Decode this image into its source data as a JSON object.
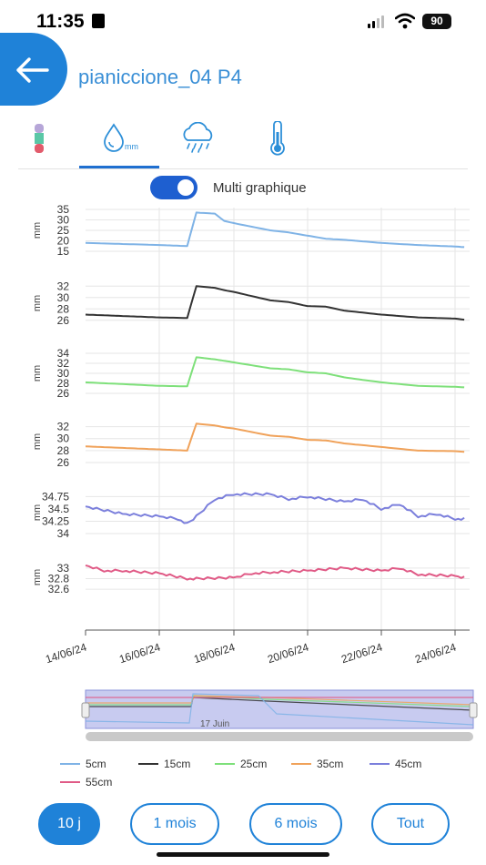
{
  "status": {
    "time": "11:35",
    "battery": "90"
  },
  "header": {
    "title": "pianiccione_04 P4"
  },
  "tabs": [
    {
      "icon": "battery-level-icon"
    },
    {
      "icon": "water-drop-mm-icon",
      "label": "mm"
    },
    {
      "icon": "rain-cloud-icon"
    },
    {
      "icon": "thermometer-icon"
    }
  ],
  "toggle": {
    "label": "Multi graphique",
    "on": true
  },
  "colors": {
    "accent": "#1f82d8",
    "s5": "#7fb3e6",
    "s15": "#333333",
    "s25": "#7ee07a",
    "s35": "#f0a25a",
    "s45": "#7b7fdc",
    "s55": "#e05a86"
  },
  "chart_data": {
    "type": "line",
    "xlabel": "",
    "ylabel": "mm",
    "x_tick_labels": [
      "14/06/24",
      "16/06/24",
      "18/06/24",
      "20/06/24",
      "22/06/24",
      "24/06/24"
    ],
    "xlim": [
      "14/06/24",
      "24/06/24"
    ],
    "panels": [
      {
        "name": "5cm",
        "ylabel": "mm",
        "yticks": [
          "35",
          "30",
          "25",
          "20",
          "15"
        ],
        "ylim": [
          15,
          35
        ],
        "x": [
          "14/06",
          "16/06",
          "16/06 18h",
          "17/06",
          "17/06 12h",
          "17/06 18h",
          "18/06",
          "19/06",
          "19/06 12h",
          "20/06",
          "20/06 12h",
          "21/06",
          "22/06",
          "23/06",
          "24/06",
          "24/06 06h"
        ],
        "values": [
          19.0,
          18.0,
          17.5,
          33.5,
          33.0,
          29.5,
          28.5,
          25.0,
          24.0,
          22.5,
          21.0,
          20.5,
          19.0,
          18.0,
          17.3,
          17.0
        ]
      },
      {
        "name": "15cm",
        "ylabel": "mm",
        "yticks": [
          "32",
          "30",
          "28",
          "26"
        ],
        "ylim": [
          25,
          33
        ],
        "x": [
          "14/06",
          "16/06",
          "16/06 18h",
          "17/06",
          "17/06 12h",
          "17/06 18h",
          "18/06",
          "19/06",
          "19/06 12h",
          "20/06",
          "20/06 12h",
          "21/06",
          "22/06",
          "23/06",
          "24/06",
          "24/06 06h"
        ],
        "values": [
          27.0,
          26.5,
          26.4,
          32.0,
          31.7,
          31.3,
          31.0,
          29.5,
          29.2,
          28.5,
          28.4,
          27.7,
          27.0,
          26.5,
          26.3,
          26.1
        ]
      },
      {
        "name": "25cm",
        "ylabel": "mm",
        "yticks": [
          "34",
          "32",
          "30",
          "28",
          "26"
        ],
        "ylim": [
          26,
          34
        ],
        "x": [
          "14/06",
          "16/06",
          "16/06 18h",
          "17/06",
          "17/06 12h",
          "17/06 18h",
          "18/06",
          "19/06",
          "19/06 12h",
          "20/06",
          "20/06 12h",
          "21/06",
          "22/06",
          "23/06",
          "24/06",
          "24/06 06h"
        ],
        "values": [
          28.2,
          27.5,
          27.4,
          33.2,
          32.8,
          32.5,
          32.2,
          31.0,
          30.8,
          30.2,
          30.0,
          29.2,
          28.2,
          27.5,
          27.3,
          27.2
        ]
      },
      {
        "name": "35cm",
        "ylabel": "mm",
        "yticks": [
          "32",
          "30",
          "28",
          "26"
        ],
        "ylim": [
          26,
          33
        ],
        "x": [
          "14/06",
          "16/06",
          "16/06 18h",
          "17/06",
          "17/06 12h",
          "17/06 18h",
          "18/06",
          "19/06",
          "19/06 12h",
          "20/06",
          "20/06 12h",
          "21/06",
          "22/06",
          "23/06",
          "24/06",
          "24/06 06h"
        ],
        "values": [
          28.7,
          28.2,
          28.0,
          32.5,
          32.2,
          31.9,
          31.7,
          30.5,
          30.3,
          29.8,
          29.7,
          29.2,
          28.6,
          28.0,
          27.9,
          27.8
        ]
      },
      {
        "name": "45cm",
        "ylabel": "mm",
        "yticks": [
          "34.75",
          "34.5",
          "34.25",
          "34"
        ],
        "ylim": [
          34,
          34.85
        ],
        "x": [
          "14/06",
          "15/06",
          "16/06",
          "16/06 12h",
          "16/06 18h",
          "17/06",
          "17/06 12h",
          "18/06",
          "19/06",
          "19/06 12h",
          "20/06",
          "21/06",
          "21/06 12h",
          "22/06",
          "22/06 12h",
          "23/06",
          "23/06 12h",
          "24/06",
          "24/06 06h"
        ],
        "values": [
          34.55,
          34.4,
          34.35,
          34.3,
          34.2,
          34.35,
          34.7,
          34.8,
          34.8,
          34.7,
          34.75,
          34.65,
          34.7,
          34.5,
          34.6,
          34.35,
          34.4,
          34.3,
          34.3
        ]
      },
      {
        "name": "55cm",
        "ylabel": "mm",
        "yticks": [
          "33",
          "32.8",
          "32.6"
        ],
        "ylim": [
          32.55,
          33.1
        ],
        "x": [
          "14/06",
          "14/06 12h",
          "15/06",
          "16/06",
          "16/06 18h",
          "17/06",
          "18/06",
          "18/06 12h",
          "19/06",
          "20/06",
          "21/06",
          "22/06",
          "22/06 12h",
          "23/06",
          "24/06",
          "24/06 06h"
        ],
        "values": [
          33.05,
          32.95,
          32.95,
          32.9,
          32.8,
          32.8,
          32.82,
          32.9,
          32.92,
          32.95,
          33.0,
          32.95,
          33.0,
          32.88,
          32.85,
          32.82
        ]
      }
    ],
    "legend": [
      "5cm",
      "15cm",
      "25cm",
      "35cm",
      "45cm",
      "55cm"
    ]
  },
  "navigator": {
    "label": "17 Juin"
  },
  "ranges": [
    {
      "label": "10 j",
      "active": true
    },
    {
      "label": "1 mois",
      "active": false
    },
    {
      "label": "6 mois",
      "active": false
    },
    {
      "label": "Tout",
      "active": false
    }
  ]
}
